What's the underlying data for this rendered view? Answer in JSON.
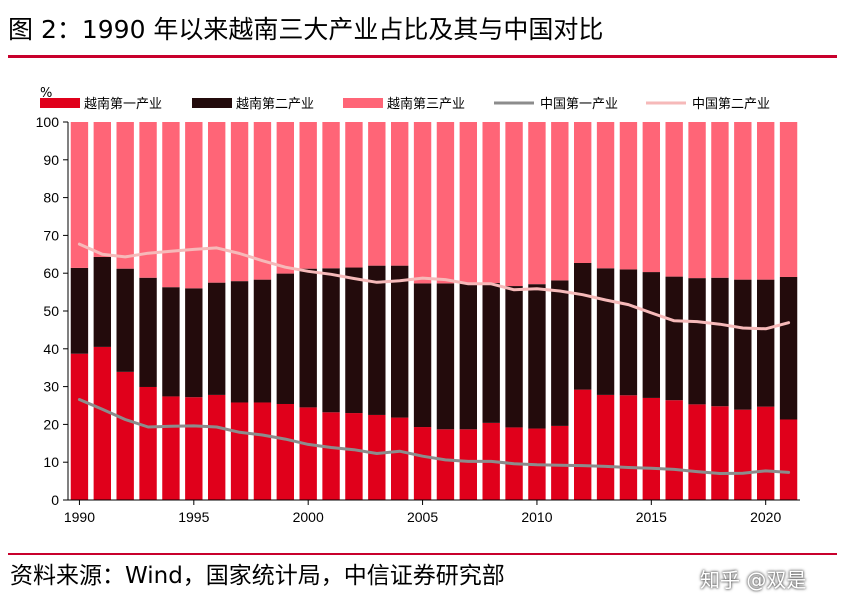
{
  "title": "图 2：1990 年以来越南三大产业占比及其与中国对比",
  "source": "资料来源：Wind，国家统计局，中信证券研究部",
  "watermark": "知乎 @双是",
  "colors": {
    "accent": "#c8002c",
    "vn_primary": "#e0001b",
    "vn_secondary": "#230b0c",
    "vn_tertiary": "#ff6577",
    "cn_primary": "#8c8c8c",
    "cn_secondary": "#f6b9b9"
  },
  "chart_data": {
    "type": "bar",
    "stacked": true,
    "ylabel": "%",
    "ylim": [
      0,
      100
    ],
    "yticks": [
      0,
      10,
      20,
      30,
      40,
      50,
      60,
      70,
      80,
      90,
      100
    ],
    "categories": [
      1990,
      1991,
      1992,
      1993,
      1994,
      1995,
      1996,
      1997,
      1998,
      1999,
      2000,
      2001,
      2002,
      2003,
      2004,
      2005,
      2006,
      2007,
      2008,
      2009,
      2010,
      2011,
      2012,
      2013,
      2014,
      2015,
      2016,
      2017,
      2018,
      2019,
      2020,
      2021
    ],
    "xticklabels": [
      "1990",
      "1995",
      "2000",
      "2005",
      "2010",
      "2015",
      "2020"
    ],
    "series": [
      {
        "name": "越南第一产业",
        "kind": "bar",
        "values": [
          38.7,
          40.5,
          33.9,
          29.9,
          27.4,
          27.2,
          27.8,
          25.8,
          25.8,
          25.4,
          24.5,
          23.2,
          23.0,
          22.5,
          21.8,
          19.3,
          18.7,
          18.7,
          20.4,
          19.2,
          18.9,
          19.6,
          29.2,
          27.8,
          27.7,
          27.0,
          26.4,
          25.3,
          24.8,
          23.9,
          24.7,
          21.3
        ]
      },
      {
        "name": "越南第二产业",
        "kind": "bar",
        "values": [
          22.7,
          23.8,
          27.3,
          28.9,
          28.9,
          28.8,
          29.7,
          32.1,
          32.5,
          34.5,
          36.7,
          38.1,
          38.5,
          39.5,
          40.2,
          38.0,
          38.6,
          38.6,
          37.0,
          37.4,
          38.2,
          38.5,
          33.5,
          33.5,
          33.3,
          33.3,
          32.7,
          33.4,
          34.0,
          34.4,
          33.6,
          37.7
        ]
      },
      {
        "name": "越南第三产业",
        "kind": "bar",
        "values": [
          38.6,
          35.7,
          38.8,
          41.2,
          43.7,
          44.0,
          42.5,
          42.1,
          41.7,
          40.1,
          38.8,
          38.7,
          38.5,
          38.0,
          38.0,
          42.7,
          42.7,
          42.7,
          42.6,
          43.4,
          42.9,
          41.9,
          37.3,
          38.7,
          39.0,
          39.7,
          40.9,
          41.3,
          41.2,
          41.7,
          41.7,
          41.0
        ]
      },
      {
        "name": "中国第一产业",
        "kind": "line",
        "values": [
          26.6,
          24.0,
          21.3,
          19.3,
          19.5,
          19.6,
          19.3,
          17.9,
          17.2,
          16.1,
          14.7,
          13.9,
          13.3,
          12.3,
          12.9,
          11.6,
          10.6,
          10.2,
          10.2,
          9.6,
          9.3,
          9.2,
          9.1,
          8.9,
          8.6,
          8.4,
          8.1,
          7.5,
          7.0,
          7.1,
          7.7,
          7.3
        ]
      },
      {
        "name": "中国第二产业",
        "kind": "line",
        "values": [
          67.7,
          65.0,
          64.3,
          65.3,
          65.8,
          66.3,
          66.7,
          65.2,
          63.3,
          61.6,
          60.5,
          59.7,
          58.6,
          57.6,
          58.0,
          58.7,
          58.3,
          57.2,
          57.2,
          55.6,
          55.9,
          55.3,
          54.3,
          52.9,
          51.7,
          49.5,
          47.4,
          47.2,
          46.5,
          45.5,
          45.3,
          46.9
        ]
      }
    ]
  }
}
